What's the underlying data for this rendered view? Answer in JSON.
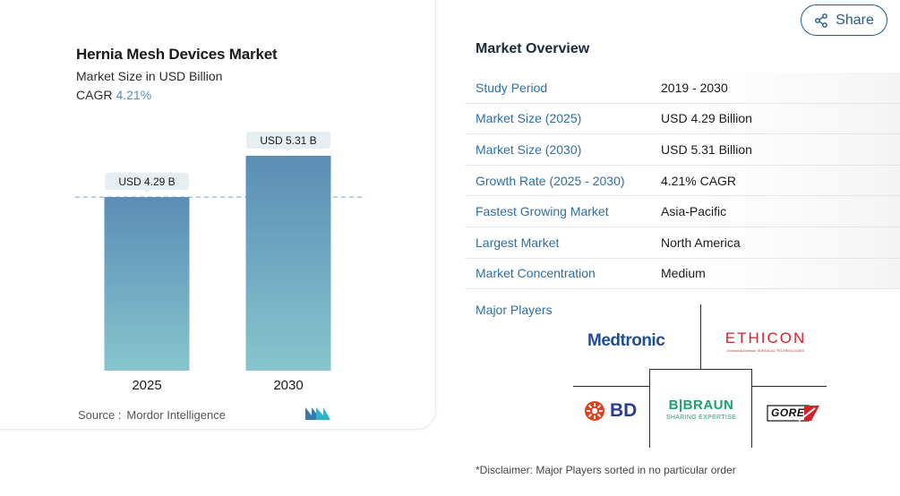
{
  "chart": {
    "title": "Hernia Mesh Devices Market",
    "subtitle": "Market Size in USD Billion",
    "cagr_label": "CAGR",
    "cagr_value": "4.21%",
    "source_label": "Source :",
    "source_name": "Mordor Intelligence",
    "colors": {
      "bar_top": "#5b8db6",
      "bar_bottom": "#86c5cd",
      "label_bg": "#e6eef1",
      "dashed_line": "#8fb5cd"
    }
  },
  "chart_data": {
    "type": "bar",
    "categories": [
      "2025",
      "2030"
    ],
    "values": [
      4.29,
      5.31
    ],
    "data_labels": [
      "USD 4.29 B",
      "USD 5.31 B"
    ],
    "title": "Hernia Mesh Devices Market",
    "subtitle": "Market Size in USD Billion",
    "xlabel": "",
    "ylabel": "",
    "ylim": [
      0,
      5.31
    ],
    "reference_line": 4.29,
    "grid": false,
    "legend": "none"
  },
  "share": {
    "label": "Share",
    "icon": "share-icon"
  },
  "overview": {
    "title": "Market Overview",
    "rows": [
      {
        "key": "Study Period",
        "value": "2019 - 2030"
      },
      {
        "key": "Market Size (2025)",
        "value": "USD 4.29 Billion"
      },
      {
        "key": "Market Size (2030)",
        "value": "USD 5.31 Billion"
      },
      {
        "key": "Growth Rate (2025 - 2030)",
        "value": "4.21% CAGR"
      },
      {
        "key": "Fastest Growing Market",
        "value": "Asia-Pacific"
      },
      {
        "key": "Largest Market",
        "value": "North America"
      },
      {
        "key": "Market Concentration",
        "value": "Medium"
      }
    ],
    "players_label": "Major Players",
    "players": {
      "medtronic": "Medtronic",
      "ethicon": "ETHICON",
      "ethicon_tag": "Johnson&Johnson SURGICAL TECHNOLOGIES",
      "bd": "BD",
      "bbraun": "B|BRAUN",
      "bbraun_tag": "SHARING EXPERTISE",
      "gore": "GORE"
    },
    "disclaimer": "*Disclaimer: Major Players sorted in no particular order"
  }
}
